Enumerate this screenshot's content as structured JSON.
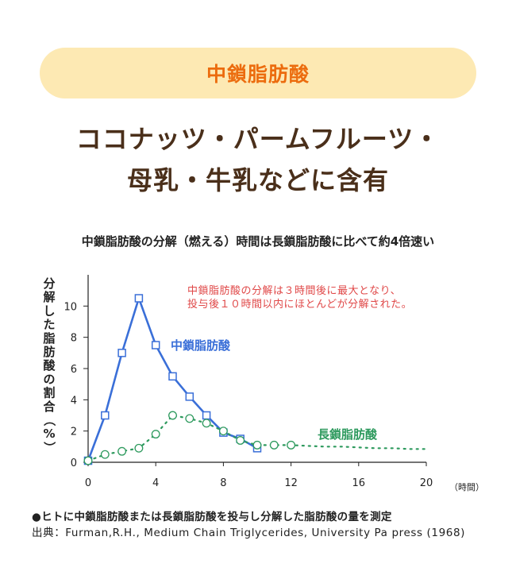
{
  "header": {
    "badge": "中鎖脂肪酸",
    "line1": "ココナッツ・パームフルーツ・",
    "line2": "母乳・牛乳などに含有"
  },
  "chart_data": {
    "type": "line",
    "title": "中鎖脂肪酸の分解（燃える）時間は長鎖脂肪酸に比べて約4倍速い",
    "ylabel": "分解した脂肪酸の割合（%）",
    "xlabel": "（時間）",
    "xlim": [
      0,
      20
    ],
    "ylim": [
      0,
      12
    ],
    "x_ticks": [
      0,
      4,
      8,
      12,
      16,
      20
    ],
    "y_ticks": [
      0,
      2,
      4,
      6,
      8,
      10
    ],
    "annotation": [
      "中鎖脂肪酸の分解は３時間後に最大となり、",
      "投与後１０時間以内にほとんどが分解された。"
    ],
    "series": [
      {
        "name": "中鎖脂肪酸",
        "color": "#3a6fd8",
        "marker": "square",
        "style": "solid",
        "x": [
          0,
          1,
          2,
          3,
          4,
          5,
          6,
          7,
          8,
          9,
          10
        ],
        "y": [
          0.1,
          3.0,
          7.0,
          10.5,
          7.5,
          5.5,
          4.2,
          3.0,
          1.9,
          1.5,
          0.9
        ]
      },
      {
        "name": "長鎖脂肪酸",
        "color": "#2e9a5e",
        "marker": "circle",
        "style": "dotted",
        "x": [
          0,
          1,
          2,
          3,
          4,
          5,
          6,
          7,
          8,
          9,
          10,
          11,
          12,
          13,
          14,
          15,
          16,
          17,
          18,
          19,
          20
        ],
        "y": [
          0.1,
          0.5,
          0.7,
          0.9,
          1.8,
          3.0,
          2.8,
          2.5,
          2.0,
          1.4,
          1.1,
          1.1,
          1.1,
          1.05,
          1.0,
          1.0,
          0.95,
          0.9,
          0.9,
          0.85,
          0.85
        ],
        "marker_count": 13
      }
    ]
  },
  "footnotes": {
    "note1": "●ヒトに中鎖脂肪酸または長鎖脂肪酸を投与し分解した脂肪酸の量を測定",
    "note2": "出典：Furman,R.H., Medium Chain Triglycerides, University Pa press (1968)"
  }
}
